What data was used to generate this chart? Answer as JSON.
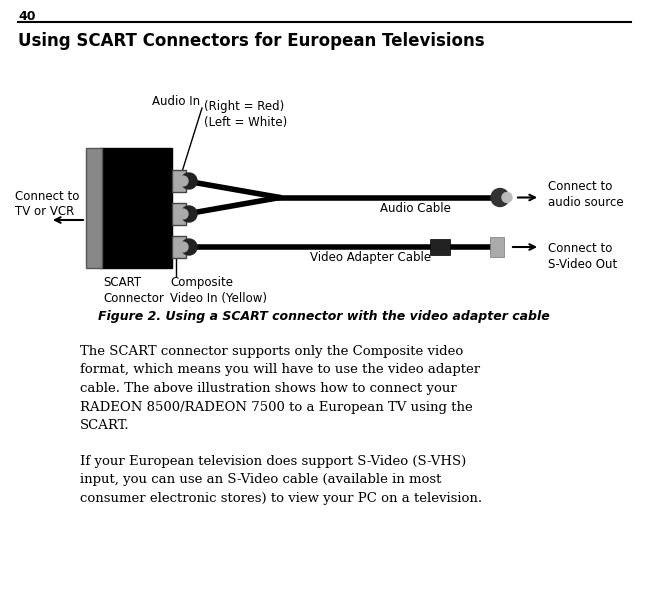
{
  "page_number": "40",
  "heading": "Using SCART Connectors for European Televisions",
  "figure_caption": "Figure 2. Using a SCART connector with the video adapter cable",
  "body_text_1": "The SCART connector supports only the Composite video\nformat, which means you will have to use the video adapter\ncable. The above illustration shows how to connect your\nRADEON 8500/RADEON 7500 to a European TV using the\nSCART.",
  "body_text_2": "If your European television does support S-Video (S-VHS)\ninput, you can use an S-Video cable (available in most\nconsumer electronic stores) to view your PC on a television.",
  "bg_color": "#ffffff",
  "text_color": "#000000",
  "labels": {
    "audio_in": "Audio In",
    "right_red": "(Right = Red)",
    "left_white": "(Left = White)",
    "connect_tv": "Connect to\nTV or VCR",
    "connect_audio": "Connect to\naudio source",
    "connect_svideo": "Connect to\nS-Video Out",
    "audio_cable": "Audio Cable",
    "video_cable": "Video Adapter Cable",
    "scart": "SCART\nConnector",
    "composite": "Composite\nVideo In (Yellow)"
  }
}
